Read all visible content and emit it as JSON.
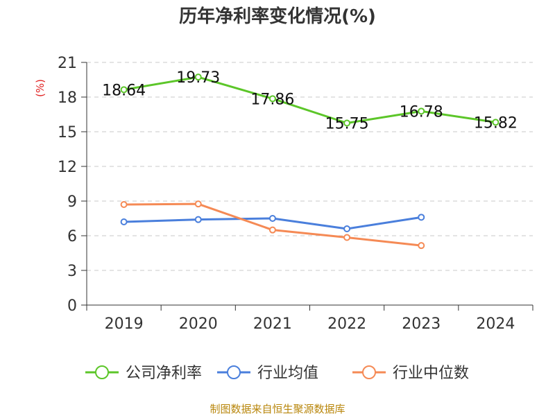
{
  "chart_data": {
    "type": "line",
    "title": "历年净利率变化情况(%)",
    "ylabel": "(%)",
    "xlabel": "",
    "categories": [
      "2019",
      "2020",
      "2021",
      "2022",
      "2023",
      "2024"
    ],
    "ylim": [
      0,
      21
    ],
    "yticks": [
      0,
      3,
      6,
      9,
      12,
      15,
      18,
      21
    ],
    "grid": true,
    "legend_position": "bottom",
    "series": [
      {
        "name": "公司净利率",
        "values": [
          18.64,
          19.73,
          17.86,
          15.75,
          16.78,
          15.82
        ],
        "color": "#5cc629",
        "labels": [
          "18.64",
          "19.73",
          "17.86",
          "15.75",
          "16.78",
          "15.82"
        ]
      },
      {
        "name": "行业均值",
        "values": [
          7.2,
          7.4,
          7.5,
          6.6,
          7.6,
          null
        ],
        "color": "#4a7fdc"
      },
      {
        "name": "行业中位数",
        "values": [
          8.7,
          8.75,
          6.5,
          5.85,
          5.15,
          null
        ],
        "color": "#f58a55"
      }
    ],
    "source": "制图数据来自恒生聚源数据库"
  }
}
